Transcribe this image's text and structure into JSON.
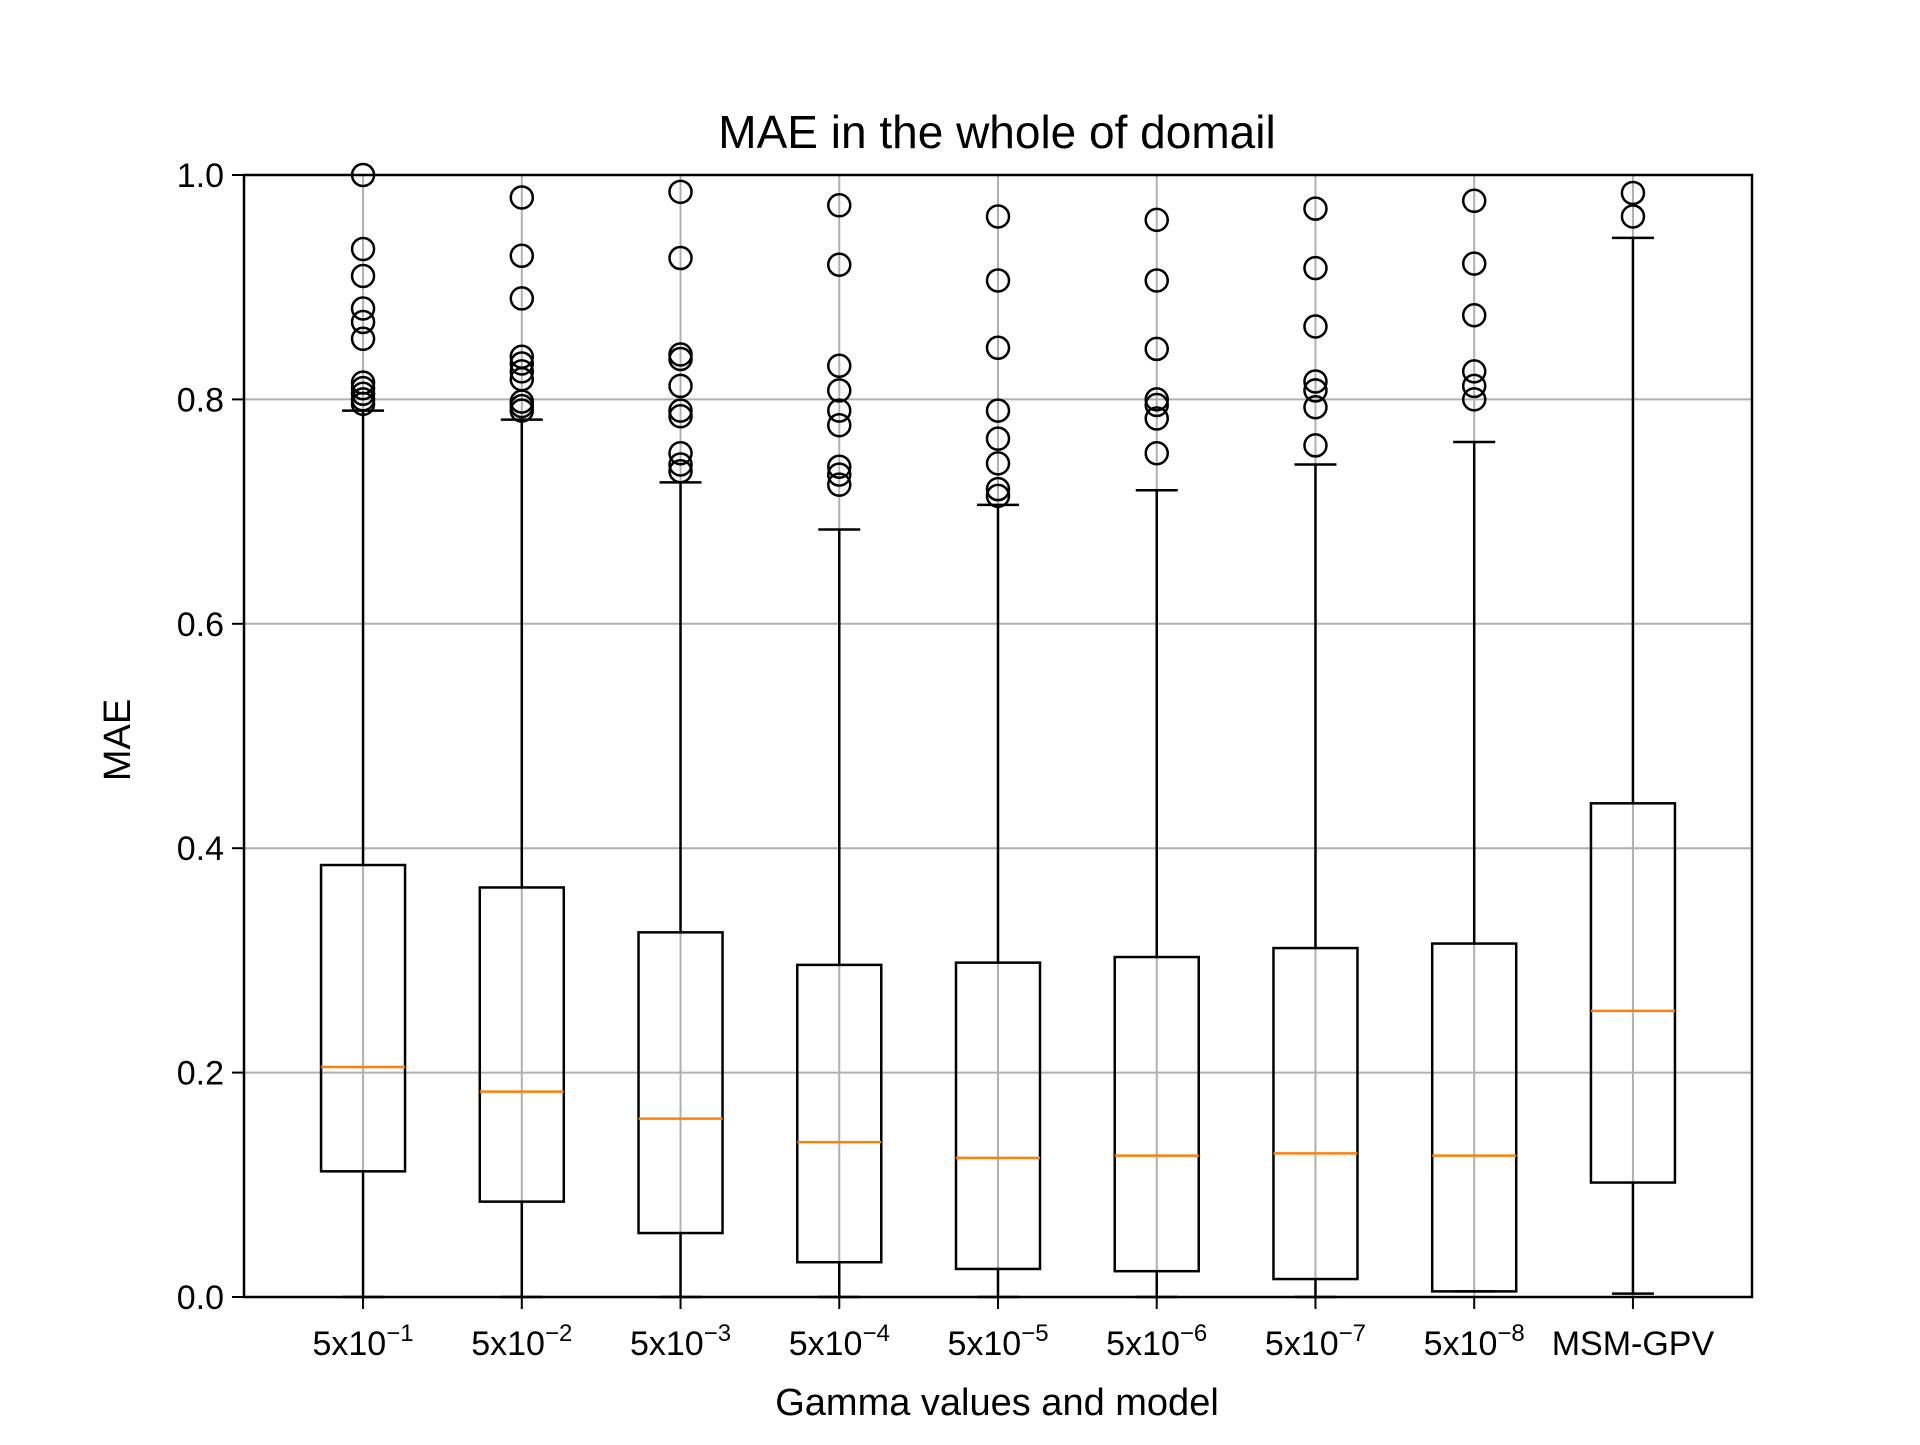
{
  "chart_data": {
    "type": "boxplot",
    "title": "MAE in the whole of domail",
    "xlabel": "Gamma values and model",
    "ylabel": "MAE",
    "ylim": [
      0.0,
      1.0
    ],
    "yticks": [
      {
        "value": 0.0,
        "label": "0.0"
      },
      {
        "value": 0.2,
        "label": "0.2"
      },
      {
        "value": 0.4,
        "label": "0.4"
      },
      {
        "value": 0.6,
        "label": "0.6"
      },
      {
        "value": 0.8,
        "label": "0.8"
      },
      {
        "value": 1.0,
        "label": "1.0"
      }
    ],
    "grid": true,
    "colors": {
      "box": "#000000",
      "median": "#ff7f0e",
      "grid": "#b0b0b0"
    },
    "categories": [
      {
        "base": "5x10",
        "exp": "−1"
      },
      {
        "base": "5x10",
        "exp": "−2"
      },
      {
        "base": "5x10",
        "exp": "−3"
      },
      {
        "base": "5x10",
        "exp": "−4"
      },
      {
        "base": "5x10",
        "exp": "−5"
      },
      {
        "base": "5x10",
        "exp": "−6"
      },
      {
        "base": "5x10",
        "exp": "−7"
      },
      {
        "base": "5x10",
        "exp": "−8"
      },
      {
        "base": "MSM-GPV",
        "exp": ""
      }
    ],
    "boxes": [
      {
        "whisker_low": 0.0,
        "q1": 0.112,
        "median": 0.205,
        "q3": 0.385,
        "whisker_high": 0.79,
        "outliers": [
          1.0,
          0.934,
          0.91,
          0.881,
          0.869,
          0.854,
          0.815,
          0.81,
          0.805,
          0.8,
          0.796
        ]
      },
      {
        "whisker_low": 0.0,
        "q1": 0.085,
        "median": 0.183,
        "q3": 0.365,
        "whisker_high": 0.782,
        "outliers": [
          0.98,
          0.928,
          0.89,
          0.838,
          0.832,
          0.825,
          0.818,
          0.798,
          0.794,
          0.79
        ]
      },
      {
        "whisker_low": 0.0,
        "q1": 0.057,
        "median": 0.159,
        "q3": 0.325,
        "whisker_high": 0.726,
        "outliers": [
          0.985,
          0.926,
          0.84,
          0.836,
          0.812,
          0.79,
          0.785,
          0.752,
          0.742,
          0.736
        ]
      },
      {
        "whisker_low": 0.0,
        "q1": 0.031,
        "median": 0.138,
        "q3": 0.296,
        "whisker_high": 0.684,
        "outliers": [
          0.973,
          0.92,
          0.83,
          0.808,
          0.79,
          0.777,
          0.74,
          0.733,
          0.724
        ]
      },
      {
        "whisker_low": 0.0,
        "q1": 0.025,
        "median": 0.124,
        "q3": 0.298,
        "whisker_high": 0.706,
        "outliers": [
          0.963,
          0.906,
          0.846,
          0.79,
          0.765,
          0.743,
          0.72,
          0.714
        ]
      },
      {
        "whisker_low": 0.0,
        "q1": 0.023,
        "median": 0.126,
        "q3": 0.303,
        "whisker_high": 0.719,
        "outliers": [
          0.96,
          0.906,
          0.845,
          0.8,
          0.795,
          0.783,
          0.752
        ]
      },
      {
        "whisker_low": 0.0,
        "q1": 0.016,
        "median": 0.128,
        "q3": 0.311,
        "whisker_high": 0.742,
        "outliers": [
          0.97,
          0.917,
          0.865,
          0.816,
          0.808,
          0.793,
          0.759
        ]
      },
      {
        "whisker_low": 0.005,
        "q1": 0.005,
        "median": 0.126,
        "q3": 0.315,
        "whisker_high": 0.762,
        "outliers": [
          0.977,
          0.921,
          0.875,
          0.825,
          0.812,
          0.8
        ]
      },
      {
        "whisker_low": 0.003,
        "q1": 0.102,
        "median": 0.255,
        "q3": 0.44,
        "whisker_high": 0.944,
        "outliers": [
          0.984,
          0.963
        ]
      }
    ]
  }
}
